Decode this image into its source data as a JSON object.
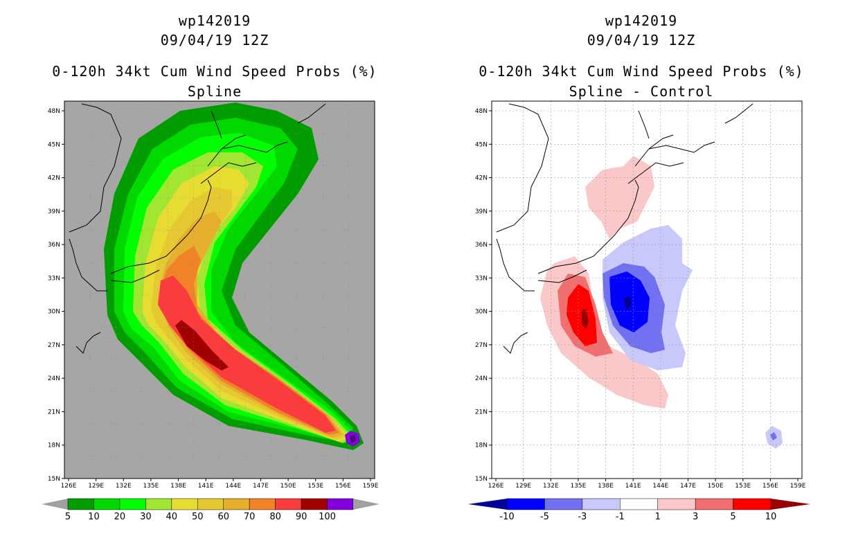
{
  "left_panel": {
    "title_line1": "wp142019",
    "title_line2": "09/04/19 12Z",
    "title_line3": "0-120h 34kt Cum Wind Speed Probs (%)",
    "title_line4": "Spline",
    "colorbar": {
      "labels": [
        "5",
        "10",
        "20",
        "30",
        "40",
        "50",
        "60",
        "70",
        "80",
        "90",
        "100"
      ],
      "colors": [
        "#009c00",
        "#00d800",
        "#00ff00",
        "#a0e632",
        "#e6dc32",
        "#e6c832",
        "#e6af2d",
        "#f08228",
        "#fa3c3c",
        "#a00000",
        "#8200dc"
      ],
      "end_color": "#a0a0a0"
    },
    "background_color": "#a6a6a6"
  },
  "right_panel": {
    "title_line1": "wp142019",
    "title_line2": "09/04/19 12Z",
    "title_line3": "0-120h 34kt Cum Wind Speed Probs (%)",
    "title_line4": "Spline - Control",
    "colorbar": {
      "labels": [
        "-10",
        "-5",
        "-3",
        "-1",
        "1",
        "3",
        "5",
        "10"
      ],
      "colors": [
        "#0000ff",
        "#7070f0",
        "#c8c8fa",
        "#ffffff",
        "#fac8c8",
        "#f07070",
        "#ff0000"
      ],
      "end_low": "#000096",
      "end_high": "#960000"
    }
  },
  "axes": {
    "x_ticks": [
      "126E",
      "129E",
      "132E",
      "135E",
      "138E",
      "141E",
      "144E",
      "147E",
      "150E",
      "153E",
      "156E",
      "159E"
    ],
    "y_ticks": [
      "15N",
      "18N",
      "21N",
      "24N",
      "27N",
      "30N",
      "33N",
      "36N",
      "39N",
      "42N",
      "45N",
      "48N"
    ]
  }
}
